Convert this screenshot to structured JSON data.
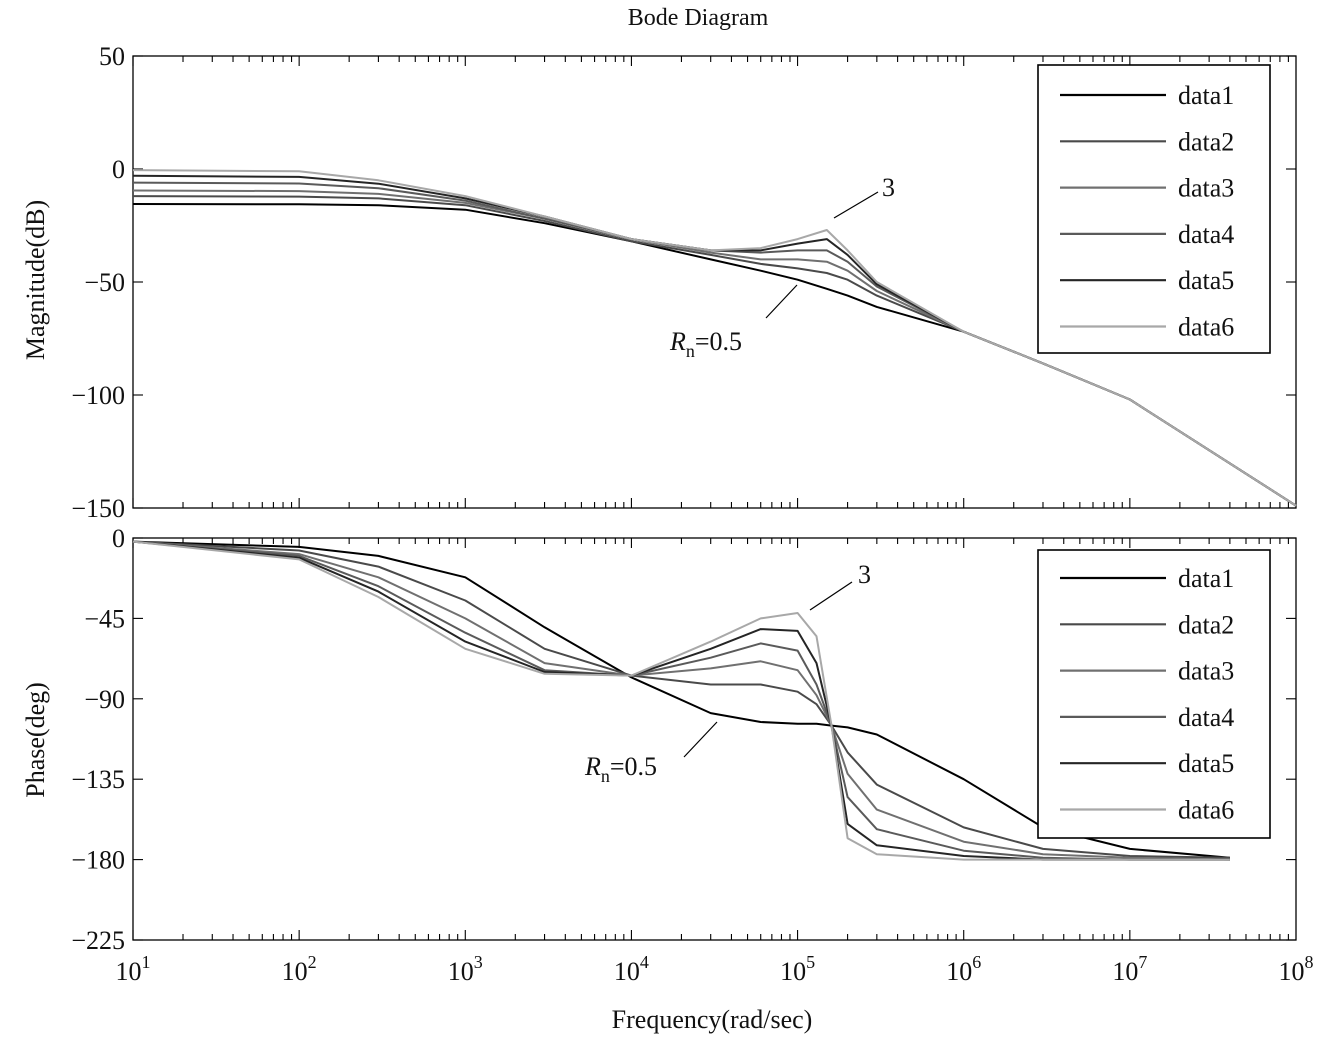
{
  "chart_data": [
    {
      "type": "line",
      "panel": "magnitude",
      "title": "Bode Diagram",
      "ylabel": "Magnitude(dB)",
      "xlabel": "",
      "xscale": "log",
      "xlim": [
        10,
        100000000
      ],
      "ylim": [
        -150,
        50
      ],
      "yticks": [
        50,
        0,
        -50,
        -100,
        -150
      ],
      "ytick_labels": [
        "50",
        "0",
        "−50",
        "−100",
        "−150"
      ],
      "grid": false,
      "legend": {
        "placement": "top-right",
        "entries": [
          "data1",
          "data2",
          "data3",
          "data4",
          "data5",
          "data6"
        ]
      },
      "annotations": [
        {
          "text_prefix": "R",
          "text_sub": "n",
          "text_suffix": "=0.5",
          "x": 70000,
          "y": -50
        },
        {
          "text": "3",
          "x": 150000,
          "y": -27
        }
      ],
      "x": [
        10,
        100,
        300,
        1000,
        3000,
        10000,
        30000,
        60000,
        100000,
        150000,
        200000,
        300000,
        1000000,
        3000000,
        10000000,
        100000000
      ],
      "series": [
        {
          "name": "data1",
          "color": "#000000",
          "values": [
            -15.5,
            -15.6,
            -16,
            -18,
            -24,
            -32,
            -40,
            -45,
            -49,
            -53,
            -56,
            -61,
            -72,
            -86,
            -102,
            -149
          ]
        },
        {
          "name": "data2",
          "color": "#4a4a4a",
          "values": [
            -12,
            -12.2,
            -13,
            -16,
            -23,
            -32,
            -38,
            -42,
            -44,
            -46,
            -49,
            -56,
            -72,
            -86,
            -102,
            -149
          ]
        },
        {
          "name": "data3",
          "color": "#707070",
          "values": [
            -9.5,
            -9.8,
            -11,
            -15,
            -22,
            -31,
            -37,
            -40,
            -40,
            -41,
            -45,
            -54,
            -72,
            -86,
            -102,
            -149
          ]
        },
        {
          "name": "data4",
          "color": "#5a5a5a",
          "values": [
            -6,
            -6.4,
            -8.5,
            -14,
            -22,
            -31,
            -36,
            -37,
            -36,
            -36,
            -41,
            -52,
            -72,
            -86,
            -102,
            -149
          ]
        },
        {
          "name": "data5",
          "color": "#252525",
          "values": [
            -3,
            -3.5,
            -6.5,
            -13,
            -21,
            -31,
            -36,
            -36,
            -33,
            -31,
            -38,
            -51,
            -72,
            -86,
            -102,
            -149
          ]
        },
        {
          "name": "data6",
          "color": "#a8a8a8",
          "values": [
            -0.5,
            -1,
            -5,
            -12,
            -21,
            -31,
            -36,
            -35,
            -31,
            -27,
            -36,
            -50,
            -72,
            -86,
            -102,
            -149
          ]
        }
      ]
    },
    {
      "type": "line",
      "panel": "phase",
      "ylabel": "Phase(deg)",
      "xlabel": "Frequency(rad/sec)",
      "xscale": "log",
      "xlim": [
        10,
        100000000
      ],
      "ylim": [
        -225,
        0
      ],
      "yticks": [
        0,
        -45,
        -90,
        -135,
        -180,
        -225
      ],
      "ytick_labels": [
        "0",
        "−45",
        "−90",
        "−135",
        "−180",
        "−225"
      ],
      "xtick_exponents": [
        "1",
        "2",
        "3",
        "4",
        "5",
        "6",
        "7",
        "8"
      ],
      "xtick_base": "10",
      "grid": false,
      "legend": {
        "placement": "top-right",
        "entries": [
          "data1",
          "data2",
          "data3",
          "data4",
          "data5",
          "data6"
        ]
      },
      "annotations": [
        {
          "text_prefix": "R",
          "text_sub": "n",
          "text_suffix": "=0.5",
          "x": 30000,
          "y": -105
        },
        {
          "text": "3",
          "x": 100000,
          "y": -40
        }
      ],
      "x": [
        10,
        100,
        300,
        1000,
        3000,
        10000,
        30000,
        60000,
        100000,
        130000,
        160000,
        200000,
        300000,
        1000000,
        3000000,
        10000000,
        40000000
      ],
      "series": [
        {
          "name": "data1",
          "color": "#000000",
          "values": [
            -2,
            -5,
            -10,
            -22,
            -50,
            -78,
            -98,
            -103,
            -104,
            -104,
            -105,
            -106,
            -110,
            -135,
            -162,
            -174,
            -179
          ]
        },
        {
          "name": "data2",
          "color": "#4a4a4a",
          "values": [
            -2,
            -7,
            -16,
            -35,
            -62,
            -77,
            -82,
            -82,
            -86,
            -93,
            -105,
            -120,
            -138,
            -162,
            -174,
            -178,
            -179
          ]
        },
        {
          "name": "data3",
          "color": "#707070",
          "values": [
            -2,
            -9,
            -22,
            -45,
            -70,
            -77,
            -73,
            -69,
            -74,
            -88,
            -105,
            -132,
            -152,
            -170,
            -177,
            -179,
            -180
          ]
        },
        {
          "name": "data4",
          "color": "#5a5a5a",
          "values": [
            -2,
            -10,
            -27,
            -53,
            -74,
            -77,
            -67,
            -59,
            -63,
            -82,
            -105,
            -145,
            -163,
            -175,
            -179,
            -180,
            -180
          ]
        },
        {
          "name": "data5",
          "color": "#252525",
          "values": [
            -2,
            -11,
            -30,
            -58,
            -75,
            -77,
            -62,
            -51,
            -52,
            -70,
            -105,
            -160,
            -172,
            -178,
            -180,
            -180,
            -180
          ]
        },
        {
          "name": "data6",
          "color": "#a8a8a8",
          "values": [
            -2,
            -12,
            -33,
            -62,
            -76,
            -77,
            -58,
            -45,
            -42,
            -55,
            -105,
            -168,
            -177,
            -180,
            -180,
            -180,
            -180
          ]
        }
      ]
    }
  ]
}
